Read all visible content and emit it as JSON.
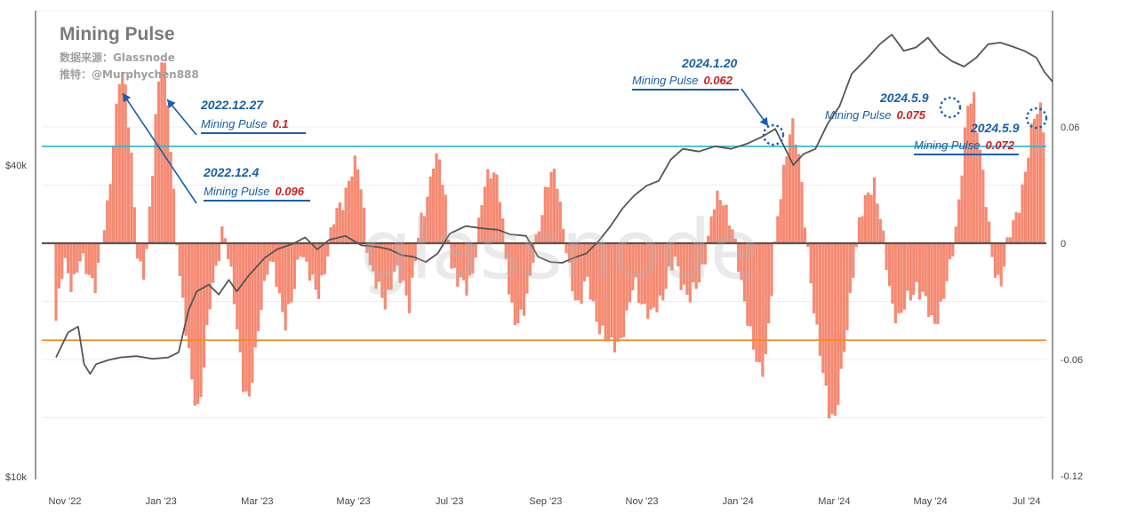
{
  "title": "Mining Pulse",
  "source_line": "数据来源：Glassnode",
  "twitter_line": "推特：@Murphychen888",
  "watermark": "glassnode",
  "chart_data": {
    "type": "bar",
    "x_ticks": [
      "Nov '22",
      "Jan '23",
      "Mar '23",
      "May '23",
      "Jul '23",
      "Sep '23",
      "Nov '23",
      "Jan '24",
      "Mar '24",
      "May '24",
      "Jul '24"
    ],
    "left_axis_ticks": [
      "$40k",
      "$10k"
    ],
    "left_axis_scale": "log",
    "right_axis_ticks": [
      "0.06",
      "0",
      "-0.06",
      "-0.12"
    ],
    "right_ylim": [
      -0.12,
      0.12
    ],
    "reference_lines": [
      {
        "value": 0.05,
        "color": "#2bb5c9"
      },
      {
        "value": 0,
        "color": "#555555"
      },
      {
        "value": -0.05,
        "color": "#f08c1e"
      }
    ],
    "bar_color": "#f4846b",
    "price_line_color": "#555555",
    "series": [
      {
        "name": "Mining Pulse",
        "axis": "right",
        "points": [
          [
            0.0,
            -0.04
          ],
          [
            0.2,
            -0.01
          ],
          [
            0.4,
            -0.02
          ],
          [
            0.6,
            -0.01
          ],
          [
            0.8,
            -0.015
          ],
          [
            1.0,
            -0.02
          ],
          [
            1.15,
            0.0
          ],
          [
            1.3,
            0.02
          ],
          [
            1.45,
            0.06
          ],
          [
            1.6,
            0.09
          ],
          [
            1.75,
            0.075
          ],
          [
            1.9,
            0.04
          ],
          [
            2.05,
            -0.01
          ],
          [
            2.2,
            -0.02
          ],
          [
            2.35,
            0.02
          ],
          [
            2.5,
            0.075
          ],
          [
            2.65,
            0.1
          ],
          [
            2.8,
            0.065
          ],
          [
            2.95,
            0.02
          ],
          [
            3.1,
            -0.02
          ],
          [
            3.25,
            -0.05
          ],
          [
            3.4,
            -0.075
          ],
          [
            3.55,
            -0.085
          ],
          [
            3.7,
            -0.06
          ],
          [
            3.85,
            -0.03
          ],
          [
            4.0,
            -0.01
          ],
          [
            4.15,
            0.01
          ],
          [
            4.3,
            -0.01
          ],
          [
            4.5,
            -0.04
          ],
          [
            4.65,
            -0.07
          ],
          [
            4.8,
            -0.085
          ],
          [
            4.95,
            -0.06
          ],
          [
            5.1,
            -0.03
          ],
          [
            5.3,
            -0.01
          ],
          [
            5.5,
            -0.02
          ],
          [
            5.7,
            -0.04
          ],
          [
            5.9,
            -0.03
          ],
          [
            6.1,
            0.0
          ],
          [
            6.3,
            -0.015
          ],
          [
            6.5,
            -0.03
          ],
          [
            6.7,
            -0.01
          ],
          [
            6.9,
            0.01
          ],
          [
            7.1,
            0.02
          ],
          [
            7.3,
            0.035
          ],
          [
            7.5,
            0.04
          ],
          [
            7.65,
            0.02
          ],
          [
            7.8,
            -0.01
          ],
          [
            8.0,
            -0.025
          ],
          [
            8.2,
            -0.03
          ],
          [
            8.4,
            -0.015
          ],
          [
            8.6,
            -0.02
          ],
          [
            8.8,
            -0.03
          ],
          [
            9.0,
            0.0
          ],
          [
            9.2,
            0.02
          ],
          [
            9.4,
            0.045
          ],
          [
            9.55,
            0.04
          ],
          [
            9.7,
            0.02
          ],
          [
            9.85,
            -0.01
          ],
          [
            10.0,
            -0.02
          ],
          [
            10.2,
            -0.025
          ],
          [
            10.4,
            -0.01
          ],
          [
            10.6,
            0.02
          ],
          [
            10.8,
            0.04
          ],
          [
            11.0,
            0.035
          ],
          [
            11.15,
            0.0
          ],
          [
            11.3,
            -0.03
          ],
          [
            11.5,
            -0.04
          ],
          [
            11.7,
            -0.035
          ],
          [
            11.9,
            0.0
          ],
          [
            12.1,
            0.015
          ],
          [
            12.3,
            0.035
          ],
          [
            12.45,
            0.04
          ],
          [
            12.6,
            0.01
          ],
          [
            12.8,
            -0.02
          ],
          [
            13.0,
            -0.03
          ],
          [
            13.2,
            -0.02
          ],
          [
            13.4,
            -0.035
          ],
          [
            13.6,
            -0.045
          ],
          [
            13.8,
            -0.055
          ],
          [
            14.0,
            -0.05
          ],
          [
            14.2,
            -0.04
          ],
          [
            14.4,
            -0.02
          ],
          [
            14.6,
            -0.03
          ],
          [
            14.8,
            -0.04
          ],
          [
            15.0,
            -0.03
          ],
          [
            15.2,
            -0.02
          ],
          [
            15.4,
            -0.01
          ],
          [
            15.6,
            -0.02
          ],
          [
            15.8,
            -0.03
          ],
          [
            16.0,
            -0.02
          ],
          [
            16.2,
            0.0
          ],
          [
            16.4,
            0.02
          ],
          [
            16.6,
            0.025
          ],
          [
            16.8,
            0.01
          ],
          [
            17.0,
            -0.015
          ],
          [
            17.2,
            -0.035
          ],
          [
            17.4,
            -0.06
          ],
          [
            17.55,
            -0.07
          ],
          [
            17.7,
            -0.05
          ],
          [
            17.9,
            0.0
          ],
          [
            18.1,
            0.035
          ],
          [
            18.25,
            0.06
          ],
          [
            18.35,
            0.062
          ],
          [
            18.5,
            0.04
          ],
          [
            18.65,
            0.01
          ],
          [
            18.8,
            -0.02
          ],
          [
            18.95,
            -0.05
          ],
          [
            19.1,
            -0.07
          ],
          [
            19.25,
            -0.085
          ],
          [
            19.4,
            -0.09
          ],
          [
            19.55,
            -0.07
          ],
          [
            19.7,
            -0.04
          ],
          [
            19.85,
            -0.01
          ],
          [
            20.0,
            0.01
          ],
          [
            20.2,
            0.025
          ],
          [
            20.35,
            0.035
          ],
          [
            20.5,
            0.015
          ],
          [
            20.65,
            -0.01
          ],
          [
            20.8,
            -0.03
          ],
          [
            21.0,
            -0.04
          ],
          [
            21.2,
            -0.03
          ],
          [
            21.4,
            -0.02
          ],
          [
            21.6,
            -0.03
          ],
          [
            21.8,
            -0.04
          ],
          [
            22.0,
            -0.035
          ],
          [
            22.2,
            -0.02
          ],
          [
            22.4,
            0.01
          ],
          [
            22.55,
            0.04
          ],
          [
            22.7,
            0.07
          ],
          [
            22.85,
            0.075
          ],
          [
            23.0,
            0.05
          ],
          [
            23.15,
            0.02
          ],
          [
            23.3,
            -0.01
          ],
          [
            23.5,
            -0.02
          ],
          [
            23.7,
            0.0
          ],
          [
            23.9,
            0.015
          ],
          [
            24.05,
            0.03
          ],
          [
            24.2,
            0.045
          ],
          [
            24.35,
            0.065
          ],
          [
            24.5,
            0.072
          ],
          [
            24.65,
            0.055
          ],
          [
            24.8,
            0.03
          ]
        ]
      },
      {
        "name": "Price",
        "axis": "left",
        "points": [
          [
            0.0,
            17000
          ],
          [
            0.3,
            19000
          ],
          [
            0.55,
            19500
          ],
          [
            0.7,
            16500
          ],
          [
            0.85,
            15800
          ],
          [
            1.0,
            16500
          ],
          [
            1.3,
            16800
          ],
          [
            1.6,
            17000
          ],
          [
            2.0,
            17100
          ],
          [
            2.4,
            16900
          ],
          [
            2.8,
            17000
          ],
          [
            3.05,
            17400
          ],
          [
            3.3,
            21000
          ],
          [
            3.5,
            22800
          ],
          [
            3.8,
            23500
          ],
          [
            4.05,
            22500
          ],
          [
            4.3,
            24000
          ],
          [
            4.5,
            22800
          ],
          [
            4.8,
            24500
          ],
          [
            5.2,
            26500
          ],
          [
            5.5,
            27500
          ],
          [
            5.9,
            28200
          ],
          [
            6.2,
            29000
          ],
          [
            6.5,
            27500
          ],
          [
            6.8,
            28700
          ],
          [
            7.2,
            29200
          ],
          [
            7.6,
            28000
          ],
          [
            8.0,
            27800
          ],
          [
            8.3,
            27500
          ],
          [
            8.6,
            26800
          ],
          [
            8.9,
            26600
          ],
          [
            9.2,
            26000
          ],
          [
            9.5,
            27000
          ],
          [
            9.8,
            29500
          ],
          [
            10.2,
            30500
          ],
          [
            10.6,
            30200
          ],
          [
            11.0,
            30000
          ],
          [
            11.3,
            29400
          ],
          [
            11.7,
            29200
          ],
          [
            12.0,
            26600
          ],
          [
            12.3,
            26000
          ],
          [
            12.6,
            25900
          ],
          [
            12.9,
            26500
          ],
          [
            13.2,
            27000
          ],
          [
            13.5,
            28500
          ],
          [
            13.8,
            30500
          ],
          [
            14.1,
            33000
          ],
          [
            14.4,
            35000
          ],
          [
            14.7,
            36500
          ],
          [
            15.0,
            37300
          ],
          [
            15.3,
            41000
          ],
          [
            15.6,
            43000
          ],
          [
            16.0,
            42500
          ],
          [
            16.4,
            43500
          ],
          [
            16.8,
            43000
          ],
          [
            17.2,
            44000
          ],
          [
            17.6,
            45500
          ],
          [
            17.9,
            47000
          ],
          [
            18.15,
            43000
          ],
          [
            18.35,
            40000
          ],
          [
            18.6,
            42000
          ],
          [
            18.9,
            43000
          ],
          [
            19.2,
            48000
          ],
          [
            19.5,
            52000
          ],
          [
            19.8,
            60000
          ],
          [
            20.2,
            64500
          ],
          [
            20.5,
            68500
          ],
          [
            20.8,
            71500
          ],
          [
            21.1,
            66500
          ],
          [
            21.4,
            67500
          ],
          [
            21.7,
            70500
          ],
          [
            22.0,
            66000
          ],
          [
            22.3,
            63500
          ],
          [
            22.6,
            62000
          ],
          [
            22.9,
            64500
          ],
          [
            23.2,
            68500
          ],
          [
            23.5,
            69000
          ],
          [
            23.8,
            67800
          ],
          [
            24.1,
            66500
          ],
          [
            24.4,
            64500
          ],
          [
            24.6,
            60500
          ],
          [
            24.8,
            58000
          ]
        ]
      }
    ],
    "annotations": [
      {
        "date": "2022.12.27",
        "label": "Mining Pulse",
        "value": "0.1"
      },
      {
        "date": "2022.12.4",
        "label": "Mining Pulse",
        "value": "0.096"
      },
      {
        "date": "2024.1.20",
        "label": "Mining Pulse",
        "value": "0.062"
      },
      {
        "date": "2024.5.9",
        "label": "Mining Pulse",
        "value": "0.075"
      },
      {
        "date": "2024.5.9",
        "label": "Mining Pulse",
        "value": "0.072"
      }
    ]
  }
}
